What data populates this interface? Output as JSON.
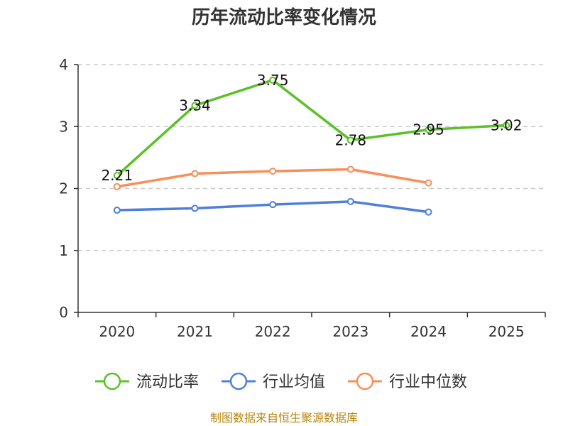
{
  "chart_data": {
    "type": "line",
    "title": "历年流动比率变化情况",
    "categories": [
      "2020",
      "2021",
      "2022",
      "2023",
      "2024",
      "2025"
    ],
    "ylim": [
      0,
      4
    ],
    "yticks": [
      "0",
      "1",
      "2",
      "3",
      "4"
    ],
    "grid": true,
    "series": [
      {
        "name": "流动比率",
        "color": "#5cc02a",
        "values": [
          2.21,
          3.34,
          3.75,
          2.78,
          2.95,
          3.02
        ],
        "labels": [
          "2.21",
          "3.34",
          "3.75",
          "2.78",
          "2.95",
          "3.02"
        ]
      },
      {
        "name": "行业均值",
        "color": "#4f7fd9",
        "values": [
          1.65,
          1.68,
          1.74,
          1.79,
          1.62,
          null
        ]
      },
      {
        "name": "行业中位数",
        "color": "#f78f5a",
        "values": [
          2.03,
          2.24,
          2.28,
          2.31,
          2.09,
          null
        ]
      }
    ]
  },
  "source": "制图数据来自恒生聚源数据库"
}
